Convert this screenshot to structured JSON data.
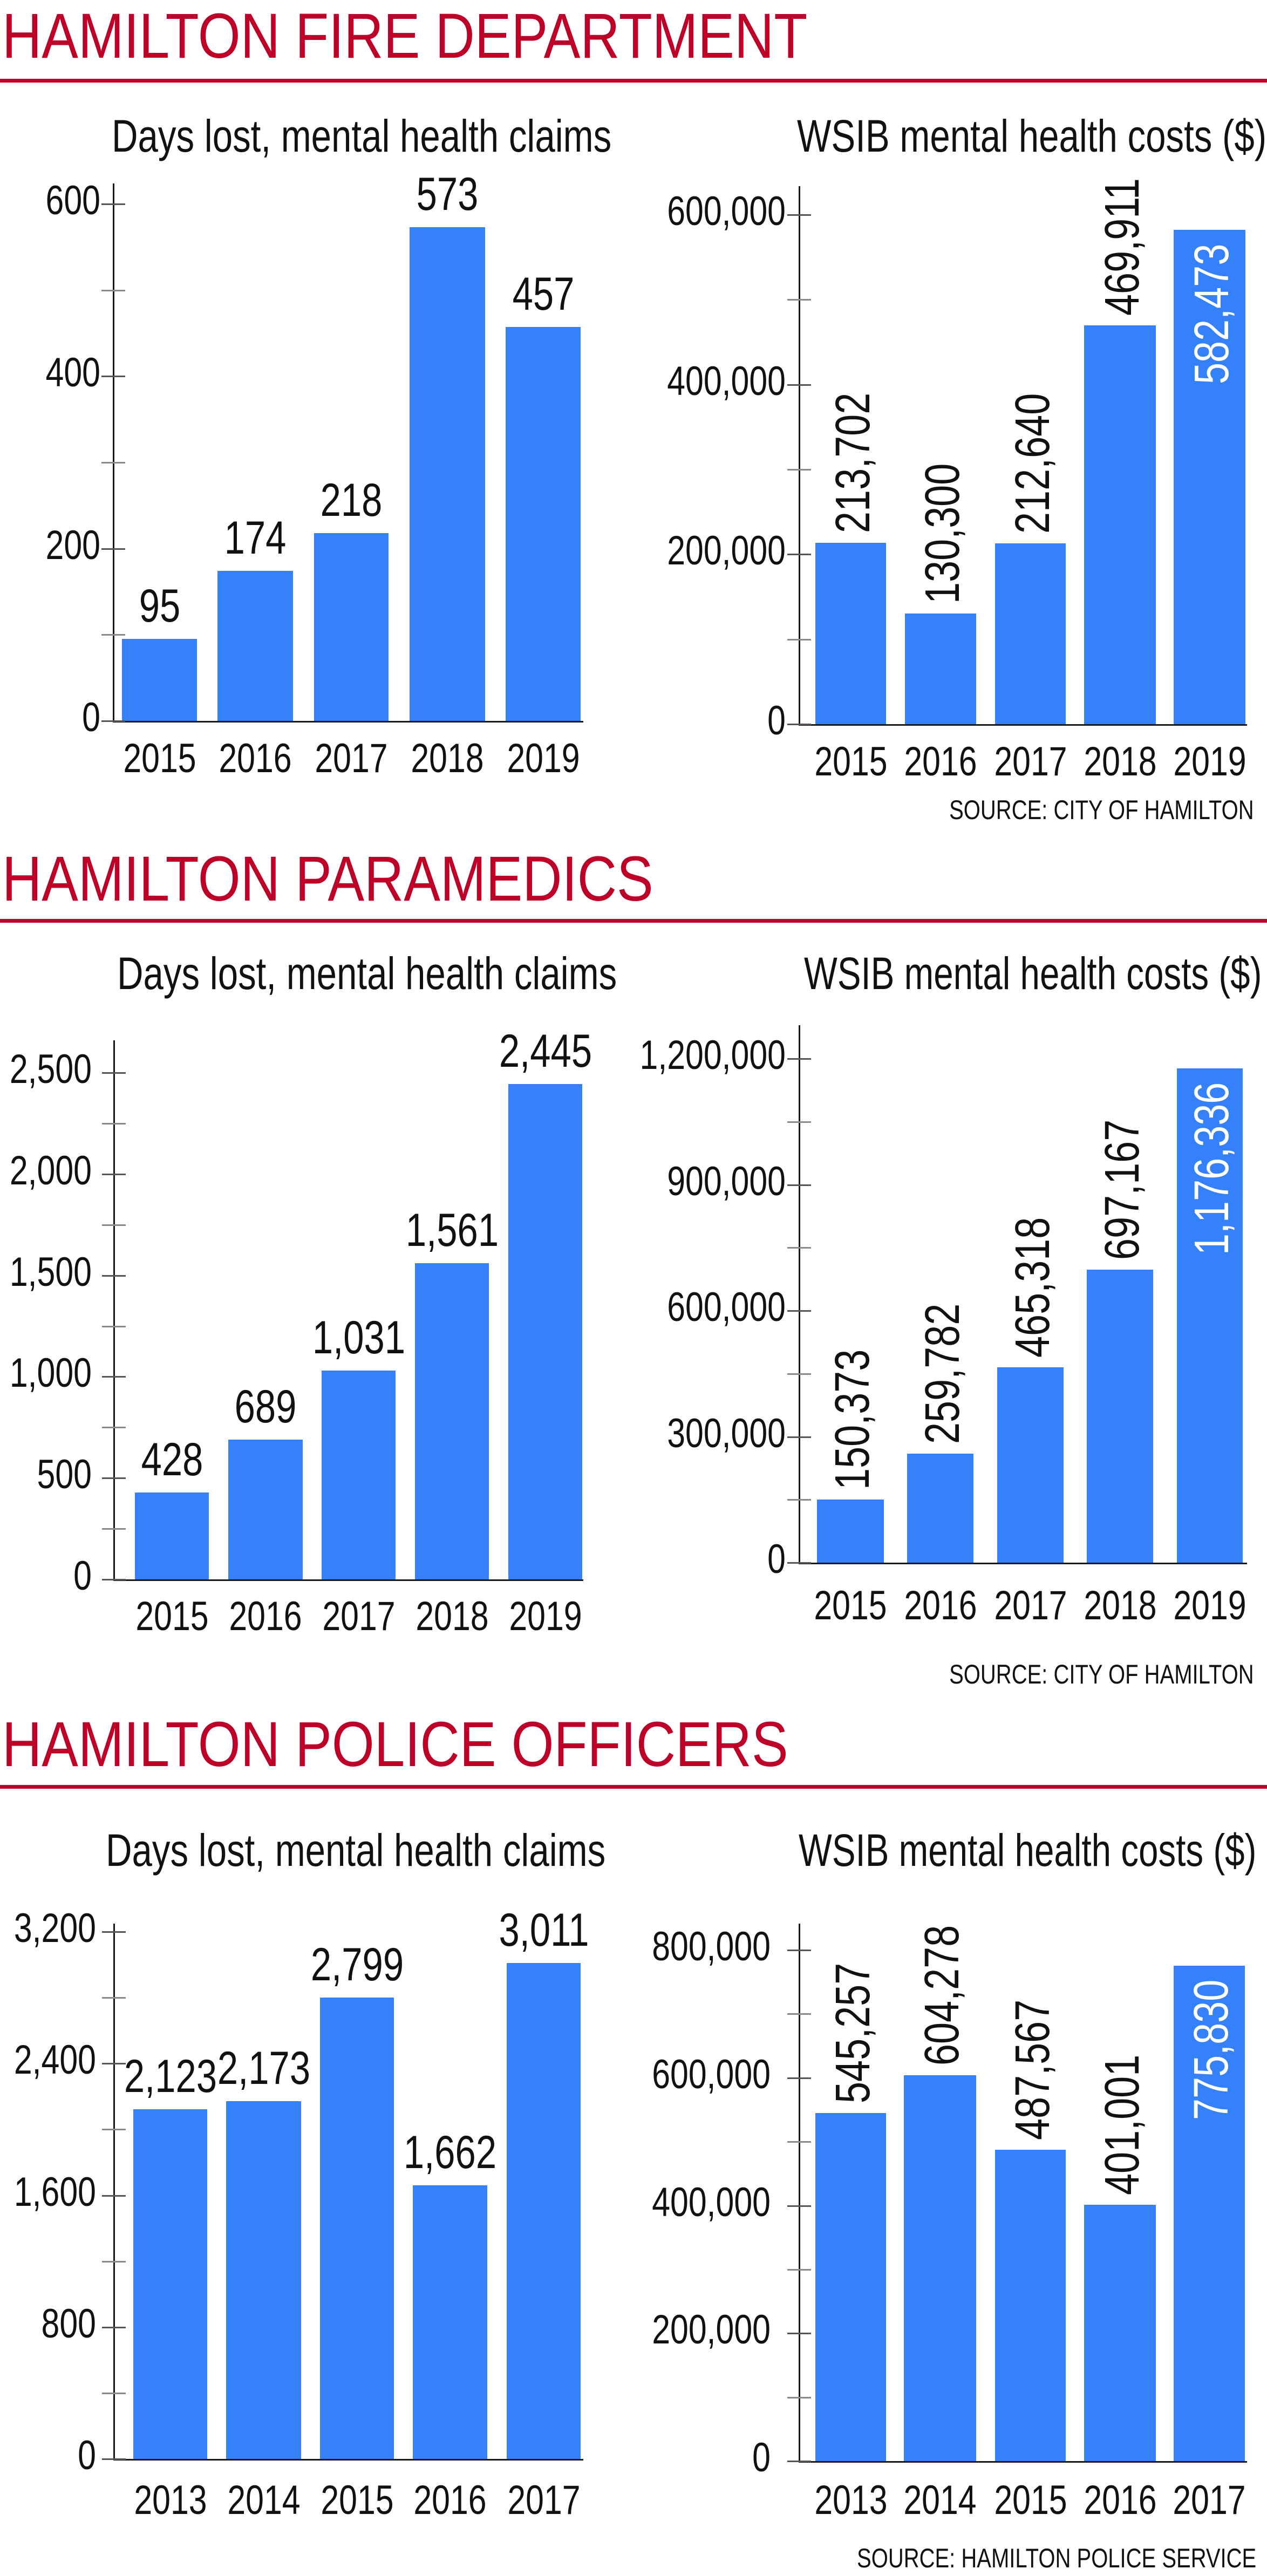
{
  "colors": {
    "accent": "#BE0028",
    "bar": "#3580FB",
    "text": "#111111",
    "inside_label": "#FFFFFF"
  },
  "sections": [
    {
      "title": "HAMILTON FIRE DEPARTMENT",
      "source": "SOURCE: CITY OF HAMILTON"
    },
    {
      "title": "HAMILTON PARAMEDICS",
      "source": "SOURCE: CITY OF HAMILTON"
    },
    {
      "title": "HAMILTON POLICE OFFICERS",
      "source": "SOURCE: HAMILTON POLICE SERVICE"
    }
  ],
  "chart_data": [
    {
      "id": "fire-days",
      "type": "bar",
      "section": "HAMILTON FIRE DEPARTMENT",
      "title": "Days lost, mental health claims",
      "xlabel": "",
      "ylabel": "",
      "categories": [
        "2015",
        "2016",
        "2017",
        "2018",
        "2019"
      ],
      "values": [
        95,
        174,
        218,
        573,
        457
      ],
      "value_labels": [
        "95",
        "174",
        "218",
        "573",
        "457"
      ],
      "yticks": [
        0,
        200,
        400,
        600
      ],
      "ytick_labels": [
        "0",
        "200",
        "400",
        "600"
      ],
      "minor_step": 100,
      "ylim": [
        0,
        600
      ],
      "grid": false,
      "label_orientation": "horizontal"
    },
    {
      "id": "fire-wsib",
      "type": "bar",
      "section": "HAMILTON FIRE DEPARTMENT",
      "title": "WSIB mental health costs ($)",
      "xlabel": "",
      "ylabel": "",
      "categories": [
        "2015",
        "2016",
        "2017",
        "2018",
        "2019"
      ],
      "values": [
        213702,
        130300,
        212640,
        469911,
        582473
      ],
      "value_labels": [
        "213,702",
        "130,300",
        "212,640",
        "469,911",
        "582,473"
      ],
      "yticks": [
        0,
        200000,
        400000,
        600000
      ],
      "ytick_labels": [
        "0",
        "200,000",
        "400,000",
        "600,000"
      ],
      "minor_step": 100000,
      "ylim": [
        0,
        600000
      ],
      "grid": false,
      "label_orientation": "vertical",
      "inside_label_index": 4,
      "source": "SOURCE: CITY OF HAMILTON"
    },
    {
      "id": "para-days",
      "type": "bar",
      "section": "HAMILTON PARAMEDICS",
      "title": "Days lost, mental health claims",
      "xlabel": "",
      "ylabel": "",
      "categories": [
        "2015",
        "2016",
        "2017",
        "2018",
        "2019"
      ],
      "values": [
        428,
        689,
        1031,
        1561,
        2445
      ],
      "value_labels": [
        "428",
        "689",
        "1,031",
        "1,561",
        "2,445"
      ],
      "yticks": [
        0,
        500,
        1000,
        1500,
        2000,
        2500
      ],
      "ytick_labels": [
        "0",
        "500",
        "1,000",
        "1,500",
        "2,000",
        "2,500"
      ],
      "minor_step": 250,
      "ylim": [
        0,
        2500
      ],
      "grid": false,
      "label_orientation": "horizontal"
    },
    {
      "id": "para-wsib",
      "type": "bar",
      "section": "HAMILTON PARAMEDICS",
      "title": "WSIB mental health costs ($)",
      "xlabel": "",
      "ylabel": "",
      "categories": [
        "2015",
        "2016",
        "2017",
        "2018",
        "2019"
      ],
      "values": [
        150373,
        259782,
        465318,
        697167,
        1176336
      ],
      "value_labels": [
        "150,373",
        "259,782",
        "465,318",
        "697,167",
        "1,176,336"
      ],
      "yticks": [
        0,
        300000,
        600000,
        900000,
        1200000
      ],
      "ytick_labels": [
        "0",
        "300,000",
        "600,000",
        "900,000",
        "1,200,000"
      ],
      "minor_step": 150000,
      "ylim": [
        0,
        1200000
      ],
      "grid": false,
      "label_orientation": "vertical",
      "inside_label_index": 4,
      "source": "SOURCE: CITY OF HAMILTON"
    },
    {
      "id": "police-days",
      "type": "bar",
      "section": "HAMILTON POLICE OFFICERS",
      "title": "Days lost, mental health claims",
      "xlabel": "",
      "ylabel": "",
      "categories": [
        "2013",
        "2014",
        "2015",
        "2016",
        "2017"
      ],
      "values": [
        2123,
        2173,
        2799,
        1662,
        3011
      ],
      "value_labels": [
        "2,123",
        "2,173",
        "2,799",
        "1,662",
        "3,011"
      ],
      "yticks": [
        0,
        800,
        1600,
        2400,
        3200
      ],
      "ytick_labels": [
        "0",
        "800",
        "1,600",
        "2,400",
        "3,200"
      ],
      "minor_step": 400,
      "ylim": [
        0,
        3200
      ],
      "grid": false,
      "label_orientation": "horizontal"
    },
    {
      "id": "police-wsib",
      "type": "bar",
      "section": "HAMILTON POLICE OFFICERS",
      "title": "WSIB mental health costs ($)",
      "xlabel": "",
      "ylabel": "",
      "categories": [
        "2013",
        "2014",
        "2015",
        "2016",
        "2017"
      ],
      "values": [
        545257,
        604278,
        487567,
        401001,
        775830
      ],
      "value_labels": [
        "545,257",
        "604,278",
        "487,567",
        "401,001",
        "775,830"
      ],
      "yticks": [
        0,
        200000,
        400000,
        600000,
        800000
      ],
      "ytick_labels": [
        "0",
        "200,000",
        "400,000",
        "600,000",
        "800,000"
      ],
      "minor_step": 100000,
      "ylim": [
        0,
        800000
      ],
      "grid": false,
      "label_orientation": "vertical",
      "inside_label_index": 4,
      "source": "SOURCE: HAMILTON POLICE SERVICE"
    }
  ]
}
